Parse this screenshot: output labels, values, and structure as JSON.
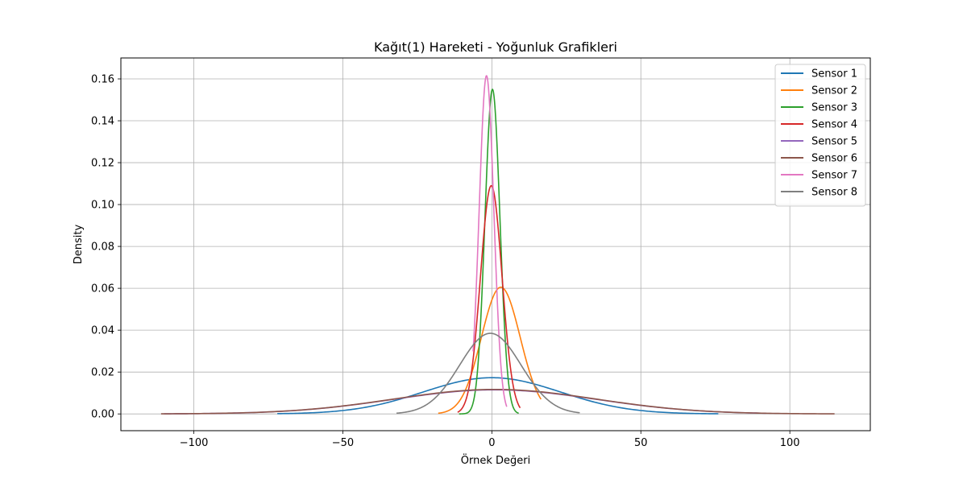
{
  "chart_data": {
    "type": "line",
    "title": "Kağıt(1) Hareketi - Yoğunluk Grafikleri",
    "xlabel": "Örnek Değeri",
    "ylabel": "Density",
    "xlim": [
      -124.5,
      127
    ],
    "ylim": [
      -0.008,
      0.17
    ],
    "xticks": [
      -100,
      -50,
      0,
      50,
      100
    ],
    "xtick_labels": [
      "−100",
      "−50",
      "0",
      "50",
      "100"
    ],
    "yticks": [
      0.0,
      0.02,
      0.04,
      0.06,
      0.08,
      0.1,
      0.12,
      0.14,
      0.16
    ],
    "ytick_labels": [
      "0.00",
      "0.02",
      "0.04",
      "0.06",
      "0.08",
      "0.10",
      "0.12",
      "0.14",
      "0.16"
    ],
    "grid": true,
    "legend_position": "top-right",
    "series": [
      {
        "name": "Sensor 1",
        "color": "#1f77b4",
        "mu": 0,
        "sigma": 23,
        "peak": 0.0173,
        "xmin": -72,
        "xmax": 76
      },
      {
        "name": "Sensor 2",
        "color": "#ff7f0e",
        "mu": 3,
        "sigma": 6.5,
        "peak": 0.0605,
        "xmin": -18,
        "xmax": 16.5
      },
      {
        "name": "Sensor 3",
        "color": "#2ca02c",
        "mu": 0.2,
        "sigma": 2.5,
        "peak": 0.155,
        "xmin": -11,
        "xmax": 9
      },
      {
        "name": "Sensor 4",
        "color": "#d62728",
        "mu": -0.2,
        "sigma": 3.6,
        "peak": 0.109,
        "xmin": -11.5,
        "xmax": 9.5
      },
      {
        "name": "Sensor 5",
        "color": "#9467bd",
        "mu": 1,
        "sigma": 34,
        "peak": 0.0115,
        "xmin": -110,
        "xmax": 92
      },
      {
        "name": "Sensor 6",
        "color": "#8c564b",
        "mu": 1,
        "sigma": 34,
        "peak": 0.0117,
        "xmin": -111,
        "xmax": 115
      },
      {
        "name": "Sensor 7",
        "color": "#e377c2",
        "mu": -1.8,
        "sigma": 2.45,
        "peak": 0.1615,
        "xmin": -6.3,
        "xmax": 5
      },
      {
        "name": "Sensor 8",
        "color": "#7f7f7f",
        "mu": -0.5,
        "sigma": 10.3,
        "peak": 0.0385,
        "xmin": -32,
        "xmax": 29.5
      }
    ]
  }
}
